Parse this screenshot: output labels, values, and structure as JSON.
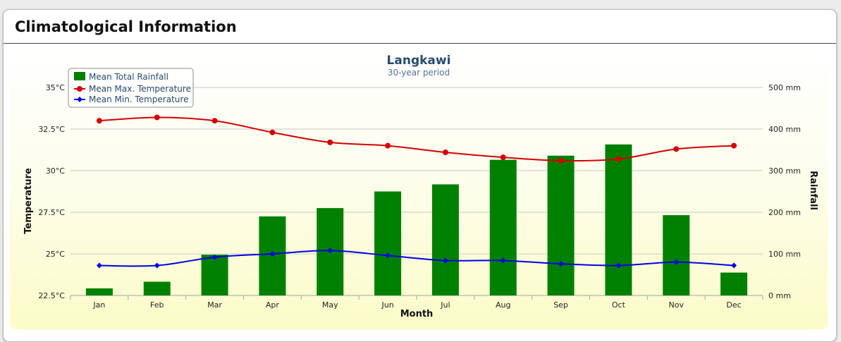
{
  "panel": {
    "title": "Climatological Information"
  },
  "colors": {
    "rainfall": "#008000",
    "max_temp": "#d40000",
    "min_temp": "#0000e6",
    "grid": "#c8c8c8",
    "title": "#274b6d"
  },
  "chart_data": {
    "type": "bar",
    "title": "Langkawi",
    "subtitle": "30-year period",
    "xlabel": "Month",
    "ylabel_left": "Temperature",
    "ylabel_right": "Rainfall",
    "categories": [
      "Jan",
      "Feb",
      "Mar",
      "Apr",
      "May",
      "Jun",
      "Jul",
      "Aug",
      "Sep",
      "Oct",
      "Nov",
      "Dec"
    ],
    "y_left": {
      "min": 22.5,
      "max": 35,
      "ticks": [
        22.5,
        25,
        27.5,
        30,
        32.5,
        35
      ],
      "tick_labels": [
        "22.5°C",
        "25°C",
        "27.5°C",
        "30°C",
        "32.5°C",
        "35°C"
      ]
    },
    "y_right": {
      "min": 0,
      "max": 500,
      "ticks": [
        0,
        100,
        200,
        300,
        400,
        500
      ],
      "tick_labels": [
        "0 mm",
        "100 mm",
        "200 mm",
        "300 mm",
        "400 mm",
        "500 mm"
      ]
    },
    "grid": true,
    "legend_position": "top-left",
    "series": [
      {
        "name": "Mean Total Rainfall",
        "type": "bar",
        "axis": "right",
        "values": [
          17,
          33,
          98,
          190,
          210,
          250,
          267,
          326,
          336,
          363,
          193,
          55
        ]
      },
      {
        "name": "Mean Max. Temperature",
        "type": "line",
        "axis": "left",
        "values": [
          33.0,
          33.2,
          33.0,
          32.3,
          31.7,
          31.5,
          31.1,
          30.8,
          30.6,
          30.7,
          31.3,
          31.5
        ]
      },
      {
        "name": "Mean Min. Temperature",
        "type": "line",
        "axis": "left",
        "values": [
          24.3,
          24.3,
          24.8,
          25.0,
          25.2,
          24.9,
          24.6,
          24.6,
          24.4,
          24.3,
          24.5,
          24.3
        ]
      }
    ]
  }
}
